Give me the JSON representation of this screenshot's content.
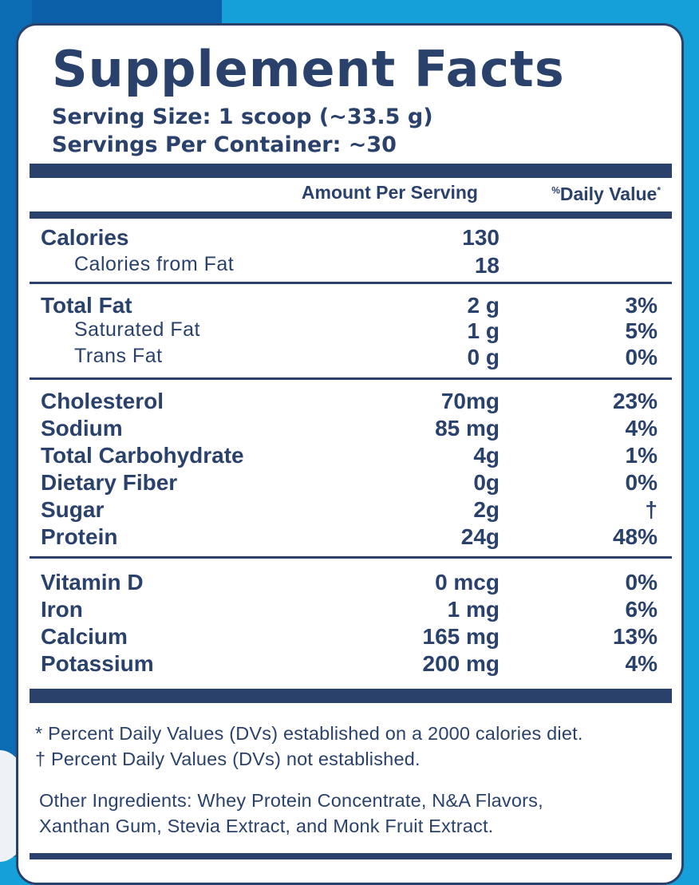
{
  "title": "Supplement Facts",
  "serving_size": "Serving Size: 1 scoop (~33.5 g)",
  "servings_per_container": "Servings Per Container: ~30",
  "headers": {
    "amount": "Amount Per Serving",
    "dv_prefix": "%",
    "dv": "Daily Value",
    "dv_suffix": "*"
  },
  "group1": [
    {
      "label": "Calories",
      "amount": "130",
      "dv": ""
    },
    {
      "label": "Calories from Fat",
      "amount": "18",
      "dv": ""
    }
  ],
  "group2": [
    {
      "label": "Total Fat",
      "amount": "2 g",
      "dv": "3%"
    },
    {
      "label": "Saturated Fat",
      "amount": "1 g",
      "dv": "5%"
    },
    {
      "label": "Trans Fat",
      "amount": "0 g",
      "dv": "0%"
    }
  ],
  "group3": [
    {
      "label": "Cholesterol",
      "amount": "70mg",
      "dv": "23%"
    },
    {
      "label": "Sodium",
      "amount": "85 mg",
      "dv": "4%"
    },
    {
      "label": "Total Carbohydrate",
      "amount": "4g",
      "dv": "1%"
    },
    {
      "label": "Dietary Fiber",
      "amount": "0g",
      "dv": "0%"
    },
    {
      "label": "Sugar",
      "amount": "2g",
      "dv": "†"
    },
    {
      "label": "Protein",
      "amount": "24g",
      "dv": "48%"
    }
  ],
  "group4": [
    {
      "label": "Vitamin D",
      "amount": "0 mcg",
      "dv": "0%"
    },
    {
      "label": "Iron",
      "amount": "1 mg",
      "dv": "6%"
    },
    {
      "label": "Calcium",
      "amount": "165 mg",
      "dv": "13%"
    },
    {
      "label": "Potassium",
      "amount": "200 mg",
      "dv": "4%"
    }
  ],
  "footnotes": [
    "* Percent Daily Values (DVs) established on a 2000 calories diet.",
    "† Percent Daily Values (DVs) not established."
  ],
  "ingredients": [
    "Other Ingredients: Whey Protein Concentrate, N&A Flavors,",
    "Xanthan Gum, Stevia Extract, and Monk Fruit Extract."
  ],
  "colors": {
    "navy": "#2a426b",
    "background_blue": "#16a0da"
  }
}
